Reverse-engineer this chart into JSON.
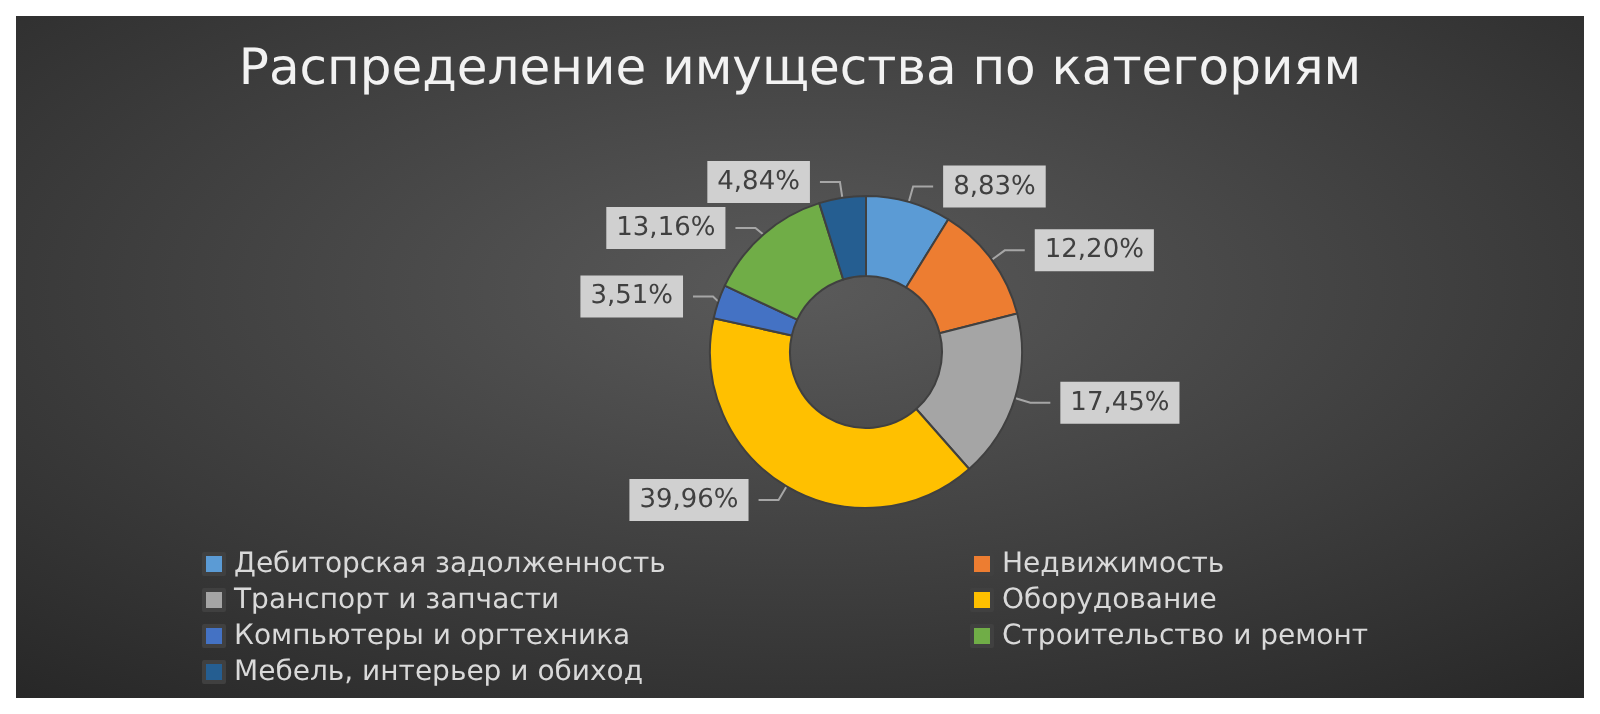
{
  "chart_data": {
    "type": "donut",
    "title": "Распределение имущества по категориям",
    "categories": [
      "Дебиторская задолженность",
      "Недвижимость",
      "Транспорт и запчасти",
      "Оборудование",
      "Компьютеры и оргтехника",
      "Строительство и ремонт",
      "Мебель, интерьер и обиход"
    ],
    "values": [
      8.83,
      12.2,
      17.45,
      39.96,
      3.51,
      13.16,
      4.84
    ],
    "value_labels": [
      "8,83%",
      "12,20%",
      "17,45%",
      "39,96%",
      "3,51%",
      "13,16%",
      "4,84%"
    ],
    "colors": [
      "#5b9bd5",
      "#ed7d31",
      "#a5a5a5",
      "#ffc000",
      "#4472c4",
      "#70ad47",
      "#255e91"
    ],
    "legend": "bottom"
  }
}
